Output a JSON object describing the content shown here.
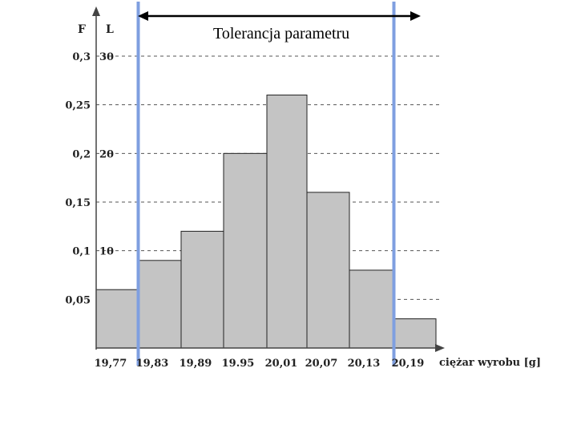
{
  "chart_data": {
    "type": "bar",
    "title": "Tolerancja parametru",
    "xlabel": "ciężar wyrobu [g]",
    "y_axis_left_label": "F",
    "y_axis_right_label": "L",
    "categories": [
      "19,77",
      "19,83",
      "19,89",
      "19.95",
      "20,01",
      "20,07",
      "20,13",
      "20,19"
    ],
    "values": [
      0.06,
      0.09,
      0.12,
      0.2,
      0.26,
      0.16,
      0.08,
      0.03
    ],
    "ylim": [
      0,
      0.3
    ],
    "f_ticks": [
      {
        "label": "0,05",
        "value": 0.05
      },
      {
        "label": "0,1",
        "value": 0.1
      },
      {
        "label": "0,15",
        "value": 0.15
      },
      {
        "label": "0,2",
        "value": 0.2
      },
      {
        "label": "0,25",
        "value": 0.25
      },
      {
        "label": "0,3",
        "value": 0.3
      }
    ],
    "l_ticks": [
      {
        "label": "10",
        "value": 0.1
      },
      {
        "label": "20",
        "value": 0.2
      },
      {
        "label": "30",
        "value": 0.3
      }
    ],
    "tolerance_limits": [
      "19,83",
      "20,19"
    ],
    "grid": "dashed horizontal",
    "colors": {
      "bar_fill": "#c4c4c4",
      "bar_stroke": "#222222",
      "tolerance_line": "#7f9fe0",
      "grid": "#555555"
    }
  }
}
